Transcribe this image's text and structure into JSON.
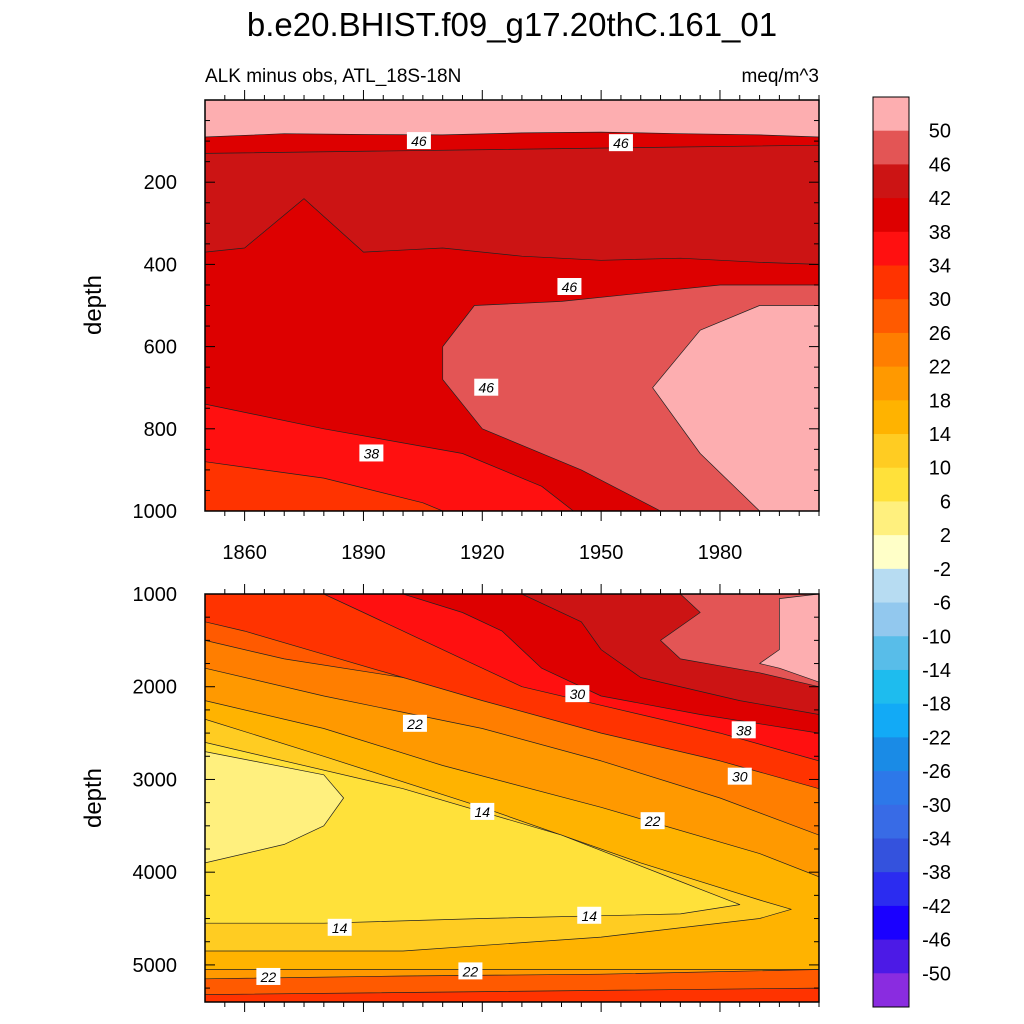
{
  "chart_data": {
    "type": "contour",
    "title": "b.e20.BHIST.f09_g17.20thC.161_01",
    "subtitle_left": "ALK minus obs, ATL_18S-18N",
    "subtitle_right": "meq/m^3",
    "x_range": [
      1850,
      2005
    ],
    "x_ticks": [
      1860,
      1890,
      1920,
      1950,
      1980
    ],
    "colorbar": {
      "levels": [
        50,
        46,
        42,
        38,
        34,
        30,
        26,
        22,
        18,
        14,
        10,
        6,
        2,
        -2,
        -6,
        -10,
        -14,
        -18,
        -22,
        -26,
        -30,
        -34,
        -38,
        -42,
        -46,
        -50
      ],
      "colors": [
        "#fdaeb0",
        "#e35555",
        "#cc1414",
        "#dd0000",
        "#ff1010",
        "#ff3300",
        "#ff5a00",
        "#ff7e00",
        "#ff9900",
        "#ffb300",
        "#ffcc22",
        "#ffe13a",
        "#fff07e",
        "#ffffc8",
        "#b7dcf2",
        "#92c8ee",
        "#58bde9",
        "#1ebcee",
        "#12aaf6",
        "#1a8be6",
        "#2d78e9",
        "#386be6",
        "#3452dd",
        "#2b2cf0",
        "#1a00ff",
        "#4c1ae6",
        "#8a2ce0"
      ]
    },
    "panels": [
      {
        "name": "upper",
        "ylabel": "depth",
        "y_range": [
          0,
          1000
        ],
        "y_ticks": [
          200,
          400,
          600,
          800,
          1000
        ],
        "regions": [
          {
            "level": ">50",
            "polygon": [
              [
                1850,
                0
              ],
              [
                2005,
                0
              ],
              [
                2005,
                90
              ],
              [
                1990,
                85
              ],
              [
                1970,
                82
              ],
              [
                1950,
                78
              ],
              [
                1930,
                80
              ],
              [
                1910,
                85
              ],
              [
                1890,
                84
              ],
              [
                1870,
                82
              ],
              [
                1850,
                90
              ]
            ]
          },
          {
            "level": "42-46",
            "polygon": [
              [
                1850,
                130
              ],
              [
                2005,
                110
              ],
              [
                2005,
                400
              ],
              [
                1990,
                395
              ],
              [
                1970,
                385
              ],
              [
                1950,
                390
              ],
              [
                1930,
                380
              ],
              [
                1910,
                360
              ],
              [
                1890,
                370
              ],
              [
                1875,
                240
              ],
              [
                1860,
                360
              ],
              [
                1850,
                370
              ]
            ]
          },
          {
            "level": "46-50",
            "polygon": [
              [
                1940,
                490
              ],
              [
                1960,
                470
              ],
              [
                1980,
                450
              ],
              [
                2005,
                450
              ],
              [
                2005,
                1000
              ],
              [
                1965,
                1000
              ],
              [
                1945,
                900
              ],
              [
                1920,
                800
              ],
              [
                1910,
                680
              ],
              [
                1910,
                600
              ],
              [
                1918,
                500
              ]
            ]
          },
          {
            "level": ">50",
            "polygon": [
              [
                1963,
                700
              ],
              [
                1975,
                560
              ],
              [
                1990,
                500
              ],
              [
                2005,
                500
              ],
              [
                2005,
                1000
              ],
              [
                1990,
                1000
              ],
              [
                1975,
                860
              ]
            ]
          },
          {
            "level": "34-38",
            "polygon": [
              [
                1850,
                740
              ],
              [
                1880,
                800
              ],
              [
                1915,
                860
              ],
              [
                1935,
                940
              ],
              [
                1943,
                1000
              ],
              [
                1850,
                1000
              ]
            ]
          },
          {
            "level": "30-34",
            "polygon": [
              [
                1850,
                880
              ],
              [
                1880,
                920
              ],
              [
                1905,
                980
              ],
              [
                1910,
                1000
              ],
              [
                1850,
                1000
              ]
            ]
          }
        ],
        "contour_labels": [
          {
            "text": "46",
            "x": 1904,
            "y": 100
          },
          {
            "text": "46",
            "x": 1955,
            "y": 105
          },
          {
            "text": "46",
            "x": 1942,
            "y": 455
          },
          {
            "text": "46",
            "x": 1921,
            "y": 700
          },
          {
            "text": "38",
            "x": 1892,
            "y": 860
          }
        ]
      },
      {
        "name": "lower",
        "ylabel": "depth",
        "y_range": [
          1000,
          5400
        ],
        "y_ticks": [
          1000,
          2000,
          3000,
          4000,
          5000
        ],
        "regions": [
          {
            "level": "26-30",
            "polygon": [
              [
                1850,
                1000
              ],
              [
                2005,
                1000
              ],
              [
                2005,
                3600
              ],
              [
                1850,
                3600
              ]
            ]
          },
          {
            "level": "22-26",
            "polygon": [
              [
                1850,
                1500
              ],
              [
                1870,
                1700
              ],
              [
                1900,
                1900
              ],
              [
                1930,
                2150
              ],
              [
                1950,
                2350
              ],
              [
                1975,
                2600
              ],
              [
                2005,
                2850
              ],
              [
                2005,
                5400
              ],
              [
                1850,
                5400
              ]
            ]
          },
          {
            "level": "18-22",
            "polygon": [
              [
                1850,
                1800
              ],
              [
                1880,
                2100
              ],
              [
                1920,
                2450
              ],
              [
                1950,
                2800
              ],
              [
                1980,
                3200
              ],
              [
                2005,
                3600
              ],
              [
                2005,
                5300
              ],
              [
                1850,
                5300
              ]
            ]
          },
          {
            "level": "14-18",
            "polygon": [
              [
                1850,
                2150
              ],
              [
                1880,
                2450
              ],
              [
                1910,
                2850
              ],
              [
                1950,
                3300
              ],
              [
                1990,
                3800
              ],
              [
                2005,
                4050
              ],
              [
                2005,
                5050
              ],
              [
                1850,
                5050
              ]
            ]
          },
          {
            "level": "10-14",
            "polygon": [
              [
                1850,
                2350
              ],
              [
                1880,
                2750
              ],
              [
                1920,
                3300
              ],
              [
                1960,
                3900
              ],
              [
                1990,
                4300
              ],
              [
                1998,
                4400
              ],
              [
                1990,
                4500
              ],
              [
                1950,
                4700
              ],
              [
                1900,
                4850
              ],
              [
                1850,
                4850
              ]
            ]
          },
          {
            "level": "6-10",
            "polygon": [
              [
                1850,
                2600
              ],
              [
                1900,
                3100
              ],
              [
                1940,
                3600
              ],
              [
                1970,
                4100
              ],
              [
                1985,
                4350
              ],
              [
                1970,
                4450
              ],
              [
                1920,
                4500
              ],
              [
                1880,
                4550
              ],
              [
                1850,
                4550
              ]
            ]
          },
          {
            "level": "2-6",
            "polygon": [
              [
                1850,
                2700
              ],
              [
                1880,
                2950
              ],
              [
                1885,
                3200
              ],
              [
                1880,
                3500
              ],
              [
                1870,
                3700
              ],
              [
                1850,
                3900
              ]
            ]
          },
          {
            "level": "30-34",
            "polygon": [
              [
                1850,
                1000
              ],
              [
                2005,
                1000
              ],
              [
                2005,
                3100
              ],
              [
                1980,
                2800
              ],
              [
                1950,
                2500
              ],
              [
                1920,
                2150
              ],
              [
                1900,
                1900
              ],
              [
                1880,
                1650
              ],
              [
                1860,
                1400
              ],
              [
                1850,
                1300
              ]
            ]
          },
          {
            "level": "34-38",
            "polygon": [
              [
                1880,
                1000
              ],
              [
                2005,
                1000
              ],
              [
                2005,
                2800
              ],
              [
                1980,
                2500
              ],
              [
                1950,
                2200
              ],
              [
                1930,
                2000
              ],
              [
                1915,
                1700
              ],
              [
                1900,
                1400
              ],
              [
                1890,
                1200
              ]
            ]
          },
          {
            "level": "38-42",
            "polygon": [
              [
                1900,
                1000
              ],
              [
                2005,
                1000
              ],
              [
                2005,
                2500
              ],
              [
                1975,
                2300
              ],
              [
                1950,
                2100
              ],
              [
                1935,
                1800
              ],
              [
                1925,
                1400
              ],
              [
                1915,
                1200
              ]
            ]
          },
          {
            "level": "42-46",
            "polygon": [
              [
                1930,
                1000
              ],
              [
                2005,
                1000
              ],
              [
                2005,
                2300
              ],
              [
                1985,
                2150
              ],
              [
                1960,
                1900
              ],
              [
                1950,
                1600
              ],
              [
                1945,
                1300
              ]
            ]
          },
          {
            "level": "46-50",
            "polygon": [
              [
                1970,
                1000
              ],
              [
                2005,
                1000
              ],
              [
                2005,
                2000
              ],
              [
                1990,
                1850
              ],
              [
                1970,
                1700
              ],
              [
                1965,
                1500
              ],
              [
                1975,
                1200
              ]
            ]
          },
          {
            "level": ">50",
            "polygon": [
              [
                1995,
                1050
              ],
              [
                2005,
                1000
              ],
              [
                2005,
                1950
              ],
              [
                1995,
                1800
              ],
              [
                1990,
                1750
              ],
              [
                1995,
                1600
              ]
            ]
          },
          {
            "level": "26-30",
            "polygon": [
              [
                1850,
                5150
              ],
              [
                1900,
                5120
              ],
              [
                1950,
                5100
              ],
              [
                2005,
                5050
              ],
              [
                2005,
                5400
              ],
              [
                1850,
                5400
              ]
            ]
          },
          {
            "level": "30-34",
            "polygon": [
              [
                1850,
                5320
              ],
              [
                2005,
                5250
              ],
              [
                2005,
                5400
              ],
              [
                1850,
                5400
              ]
            ]
          }
        ],
        "contour_labels": [
          {
            "text": "30",
            "x": 1944,
            "y": 2080
          },
          {
            "text": "22",
            "x": 1903,
            "y": 2400
          },
          {
            "text": "38",
            "x": 1986,
            "y": 2470
          },
          {
            "text": "30",
            "x": 1985,
            "y": 2970
          },
          {
            "text": "14",
            "x": 1920,
            "y": 3350
          },
          {
            "text": "22",
            "x": 1963,
            "y": 3450
          },
          {
            "text": "14",
            "x": 1947,
            "y": 4470
          },
          {
            "text": "14",
            "x": 1884,
            "y": 4600
          },
          {
            "text": "22",
            "x": 1917,
            "y": 5070
          },
          {
            "text": "22",
            "x": 1866,
            "y": 5130
          }
        ]
      }
    ]
  }
}
